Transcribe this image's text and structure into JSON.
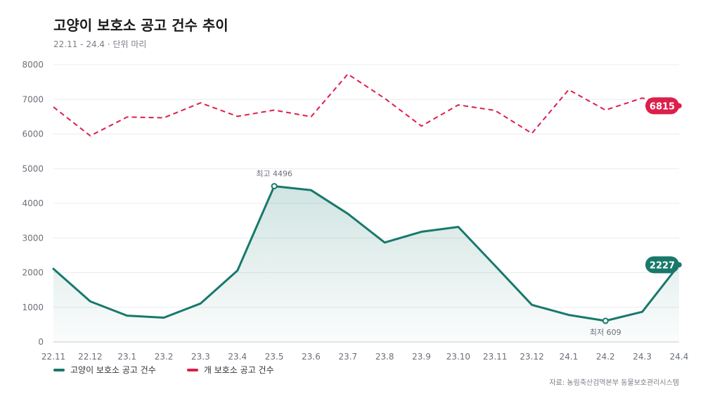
{
  "title": "고양이 보호소 공고 건수 추이",
  "subtitle": "22.11 - 24.4 · 단위 마리",
  "source": "자료: 농림축산검역본부 동물보호관리시스템",
  "colors": {
    "cat": "#18796b",
    "dog": "#dc1f4b",
    "grid": "#e9ecef",
    "axis": "#c8ccd2",
    "tick": "#6b7079"
  },
  "chart_data": {
    "type": "line",
    "categories": [
      "22.11",
      "22.12",
      "23.1",
      "23.2",
      "23.3",
      "23.4",
      "23.5",
      "23.6",
      "23.7",
      "23.8",
      "23.9",
      "23.10",
      "23.11",
      "23.12",
      "24.1",
      "24.2",
      "24.3",
      "24.4"
    ],
    "ylim": [
      0,
      8000
    ],
    "yticks": [
      0,
      1000,
      2000,
      3000,
      4000,
      5000,
      6000,
      7000,
      8000
    ],
    "grid": true,
    "legend": "bottom-left",
    "series": [
      {
        "key": "cat",
        "name": "고양이 보호소 공고 건수",
        "style": "solid-area",
        "values": [
          2110,
          1170,
          760,
          700,
          1110,
          2060,
          4496,
          4380,
          3700,
          2870,
          3180,
          3320,
          2200,
          1070,
          780,
          609,
          870,
          2227
        ]
      },
      {
        "key": "dog",
        "name": "개 보호소 공고 건수",
        "style": "dashed",
        "values": [
          6780,
          5950,
          6490,
          6470,
          6900,
          6510,
          6690,
          6500,
          7730,
          7030,
          6230,
          6840,
          6680,
          6020,
          7280,
          6690,
          7040,
          6815
        ]
      }
    ],
    "annotations": [
      {
        "series": "cat",
        "index": 6,
        "label": "최고 4496",
        "position": "above"
      },
      {
        "series": "cat",
        "index": 15,
        "label": "최저 609",
        "position": "below"
      }
    ],
    "end_labels": [
      {
        "series": "dog",
        "label": "6815"
      },
      {
        "series": "cat",
        "label": "2227"
      }
    ]
  }
}
